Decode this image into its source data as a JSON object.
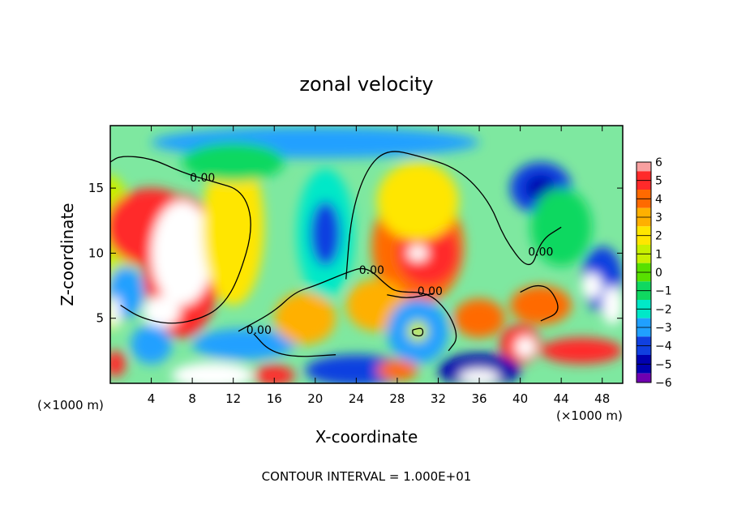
{
  "chart_data": {
    "type": "heatmap",
    "title": "zonal velocity",
    "xlabel": "X-coordinate",
    "ylabel": "Z-coordinate",
    "x_unit_left": "(×1000 m)",
    "x_unit_right": "(×1000 m)",
    "footer": "CONTOUR INTERVAL = 1.000E+01",
    "xlim": [
      0,
      50
    ],
    "ylim": [
      0,
      19.8
    ],
    "x_ticks": [
      4,
      8,
      12,
      16,
      20,
      24,
      28,
      32,
      36,
      40,
      44,
      48
    ],
    "y_ticks": [
      5,
      10,
      15
    ],
    "colorbar": {
      "levels": [
        6,
        5,
        4,
        3,
        2,
        1,
        0,
        -1,
        -2,
        -3,
        -4,
        -5,
        -6
      ],
      "colors": [
        "#f8a0a0",
        "#ff2a2a",
        "#ff6a00",
        "#ffb000",
        "#ffe600",
        "#c8f000",
        "#58e000",
        "#10d860",
        "#00e8c8",
        "#20a0ff",
        "#1040e0",
        "#0000b0",
        "#7000b0"
      ]
    },
    "contour_labels": [
      {
        "text": "0.00",
        "x": 9,
        "z": 15.5
      },
      {
        "text": "0.00",
        "x": 14.5,
        "z": 3.8
      },
      {
        "text": "0.00",
        "x": 25.5,
        "z": 8.4
      },
      {
        "text": "0.00",
        "x": 31.2,
        "z": 6.8
      },
      {
        "text": "0.00",
        "x": 42,
        "z": 9.8
      }
    ],
    "regions": [
      {
        "x": 0,
        "z": 10,
        "rx": 2.5,
        "rz": 6,
        "v": 0.5
      },
      {
        "x": 4,
        "z": 12,
        "rx": 4.5,
        "rz": 3,
        "v": 4.5
      },
      {
        "x": 7,
        "z": 9,
        "rx": 3.8,
        "rz": 5.5,
        "v": 4.5
      },
      {
        "x": 7,
        "z": 10,
        "rx": 3,
        "rz": 4,
        "v": 6.5
      },
      {
        "x": 5,
        "z": 5.5,
        "rx": 1.8,
        "rz": 1.2,
        "v": 6.5
      },
      {
        "x": 12,
        "z": 12,
        "rx": 3,
        "rz": 6,
        "v": 2
      },
      {
        "x": 1.5,
        "z": 7,
        "rx": 1.8,
        "rz": 2,
        "v": -3.5
      },
      {
        "x": 0.4,
        "z": 5.5,
        "rx": 0.6,
        "rz": 1.2,
        "v": -6.5
      },
      {
        "x": 13,
        "z": 3,
        "rx": 5,
        "rz": 1.2,
        "v": -3
      },
      {
        "x": 4,
        "z": 3,
        "rx": 2,
        "rz": 1.5,
        "v": -3
      },
      {
        "x": 20,
        "z": 18.5,
        "rx": 16,
        "rz": 1.2,
        "v": -3
      },
      {
        "x": 12,
        "z": 17,
        "rx": 5,
        "rz": 1.5,
        "v": -1.5
      },
      {
        "x": 21,
        "z": 11.5,
        "rx": 2.8,
        "rz": 5,
        "v": -2.5
      },
      {
        "x": 21,
        "z": 11.5,
        "rx": 1.5,
        "rz": 2.5,
        "v": -4
      },
      {
        "x": 30,
        "z": 10.5,
        "rx": 4.5,
        "rz": 4.5,
        "v": 4
      },
      {
        "x": 31,
        "z": 10,
        "rx": 3,
        "rz": 2.5,
        "v": 5
      },
      {
        "x": 30,
        "z": 10,
        "rx": 1,
        "rz": 0.6,
        "v": 6.5
      },
      {
        "x": 30,
        "z": 14,
        "rx": 4,
        "rz": 3,
        "v": 2
      },
      {
        "x": 26,
        "z": 6,
        "rx": 3,
        "rz": 2,
        "v": 2.5
      },
      {
        "x": 36,
        "z": 5,
        "rx": 2.5,
        "rz": 1.5,
        "v": 4
      },
      {
        "x": 30,
        "z": 4,
        "rx": 3,
        "rz": 2.5,
        "v": -3
      },
      {
        "x": 30,
        "z": 4,
        "rx": 1,
        "rz": 0.8,
        "v": 1
      },
      {
        "x": 19,
        "z": 5,
        "rx": 3,
        "rz": 2,
        "v": 3
      },
      {
        "x": 42,
        "z": 15,
        "rx": 3,
        "rz": 2,
        "v": -4
      },
      {
        "x": 42,
        "z": 15,
        "rx": 1.5,
        "rz": 1,
        "v": -5
      },
      {
        "x": 44,
        "z": 12,
        "rx": 3,
        "rz": 3,
        "v": -1.5
      },
      {
        "x": 48,
        "z": 8,
        "rx": 2,
        "rz": 2.5,
        "v": -4
      },
      {
        "x": 49,
        "z": 6,
        "rx": 1,
        "rz": 1.5,
        "v": -6.5
      },
      {
        "x": 47,
        "z": 7.5,
        "rx": 1,
        "rz": 1,
        "v": -6.5
      },
      {
        "x": 42,
        "z": 6,
        "rx": 3,
        "rz": 1.5,
        "v": 4
      },
      {
        "x": 40,
        "z": 3,
        "rx": 2,
        "rz": 1.5,
        "v": 5
      },
      {
        "x": 40.5,
        "z": 2.8,
        "rx": 1,
        "rz": 0.8,
        "v": -6.5
      },
      {
        "x": 46,
        "z": 2.5,
        "rx": 4,
        "rz": 1,
        "v": 4.5
      },
      {
        "x": 36,
        "z": 1,
        "rx": 4,
        "rz": 1.3,
        "v": -5
      },
      {
        "x": 36,
        "z": 0.5,
        "rx": 2,
        "rz": 0.6,
        "v": -6.5
      },
      {
        "x": 10,
        "z": 0.6,
        "rx": 4,
        "rz": 1,
        "v": -6.5
      },
      {
        "x": 16,
        "z": 0.6,
        "rx": 2,
        "rz": 0.8,
        "v": 4.5
      },
      {
        "x": 24,
        "z": 1,
        "rx": 5,
        "rz": 1.2,
        "v": -4
      },
      {
        "x": 28,
        "z": 1,
        "rx": 2,
        "rz": 0.8,
        "v": 4
      },
      {
        "x": 0.5,
        "z": 1.5,
        "rx": 1,
        "rz": 1,
        "v": 5
      }
    ],
    "contours": [
      [
        [
          0,
          17
        ],
        [
          1,
          17.5
        ],
        [
          4,
          17.3
        ],
        [
          7,
          16.2
        ],
        [
          10,
          15.5
        ],
        [
          13,
          14.8
        ],
        [
          14,
          12
        ],
        [
          12.5,
          8
        ],
        [
          11,
          6
        ],
        [
          9,
          5
        ],
        [
          6,
          4.5
        ],
        [
          3,
          5
        ],
        [
          1,
          6
        ]
      ],
      [
        [
          23,
          8
        ],
        [
          23.5,
          13
        ],
        [
          25,
          16.5
        ],
        [
          27,
          18
        ],
        [
          30,
          17.5
        ],
        [
          34,
          16.5
        ],
        [
          37,
          14
        ],
        [
          38.5,
          11
        ],
        [
          41,
          8.5
        ],
        [
          42,
          11
        ],
        [
          44,
          12
        ]
      ],
      [
        [
          12.5,
          4
        ],
        [
          16,
          5.5
        ],
        [
          18,
          7
        ],
        [
          20,
          7.5
        ],
        [
          23,
          8.5
        ],
        [
          25,
          9
        ],
        [
          27,
          7.5
        ],
        [
          28,
          7
        ],
        [
          31,
          7
        ],
        [
          33,
          5.5
        ],
        [
          34,
          3.5
        ],
        [
          33,
          2.5
        ]
      ],
      [
        [
          27,
          6.8
        ],
        [
          29,
          6.5
        ],
        [
          31.5,
          6.9
        ]
      ],
      [
        [
          40,
          7
        ],
        [
          41.5,
          7.6
        ],
        [
          43,
          7.3
        ],
        [
          44,
          5.5
        ],
        [
          42,
          4.8
        ]
      ],
      [
        [
          14,
          3.8
        ],
        [
          15.5,
          2.5
        ],
        [
          18,
          2
        ],
        [
          22,
          2.2
        ]
      ],
      [
        [
          29.5,
          4.1
        ],
        [
          30.5,
          4.3
        ],
        [
          30.5,
          3.6
        ],
        [
          29.5,
          3.7
        ],
        [
          29.5,
          4.1
        ]
      ]
    ]
  }
}
